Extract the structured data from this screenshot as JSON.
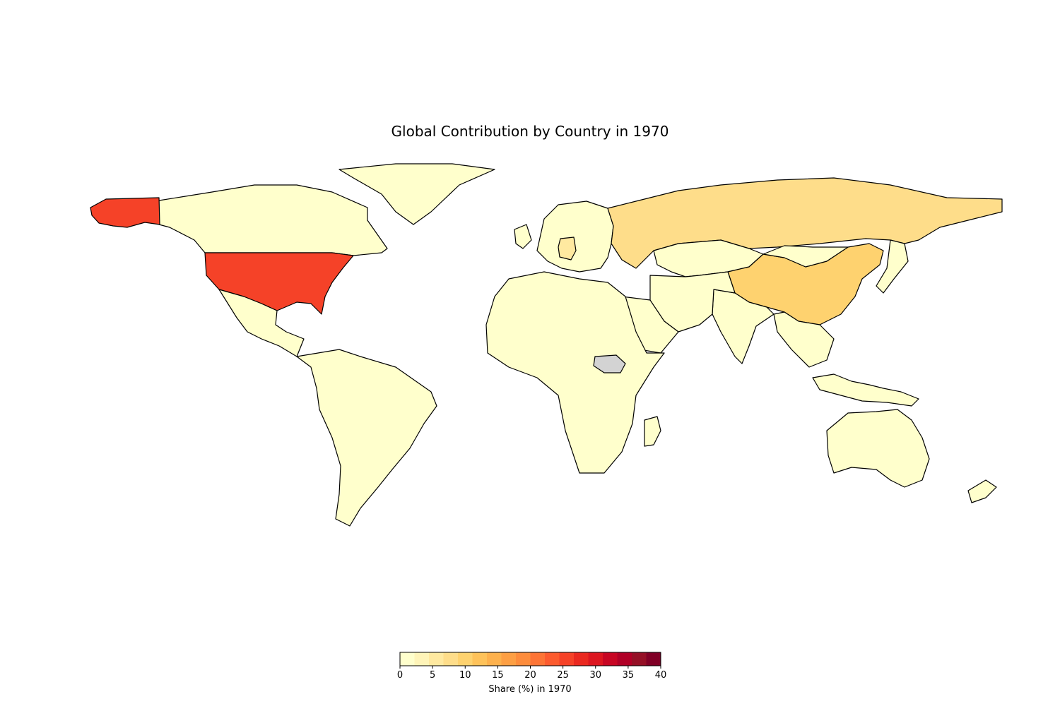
{
  "title": "Global Contribution by Country in 1970",
  "colorbar": {
    "label": "Share (%) in 1970",
    "min": 0,
    "max": 40,
    "ticks": [
      "0",
      "5",
      "10",
      "15",
      "20",
      "25",
      "30",
      "35",
      "40"
    ],
    "colors": [
      "#ffffcc",
      "#fff4b8",
      "#ffe9a0",
      "#fedd8a",
      "#fed26f",
      "#fec25a",
      "#fdb14d",
      "#fd9f44",
      "#fd8c3c",
      "#fd7435",
      "#fc5b2e",
      "#f54228",
      "#ea2920",
      "#dc1620",
      "#c70623",
      "#b00026",
      "#951026",
      "#800026"
    ],
    "missing_color": "#d3d3d3"
  },
  "chart_data": {
    "type": "choropleth",
    "title": "Global Contribution by Country in 1970",
    "color_scale": "YlOrRd",
    "range": [
      0,
      40
    ],
    "legend_label": "Share (%) in 1970",
    "values": [
      {
        "country": "United States",
        "share": 26
      },
      {
        "country": "Russia",
        "share": 7
      },
      {
        "country": "China",
        "share": 9
      },
      {
        "country": "Canada",
        "share": 3
      },
      {
        "country": "India",
        "share": 2
      },
      {
        "country": "Germany",
        "share": 5
      },
      {
        "country": "Other countries",
        "share": 1
      },
      {
        "country": "South Sudan",
        "share": null
      }
    ]
  }
}
